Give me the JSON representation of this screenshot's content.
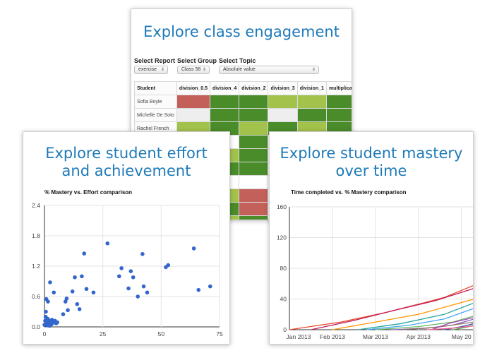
{
  "engagement": {
    "title": "Explore class engagement",
    "controls": {
      "report_label": "Select Report",
      "report_value": "exercise",
      "group_label": "Select Group",
      "group_value": "Class 58",
      "topic_label": "Select Topic",
      "topic_value": "Absolute value"
    },
    "columns": [
      "Student",
      "division_0.5",
      "division_4",
      "division_2",
      "division_3",
      "division_1",
      "multiplicat"
    ],
    "rows": [
      {
        "student": "Sofia Boyle",
        "cells": [
          "red",
          "dark",
          "dark",
          "light",
          "light",
          "dark"
        ]
      },
      {
        "student": "Michelle De Soto",
        "cells": [
          "empty",
          "dark",
          "dark",
          "empty",
          "dark",
          "dark"
        ]
      },
      {
        "student": "Rachel French",
        "cells": [
          "light",
          "dark",
          "light",
          "dark",
          "light",
          "dark"
        ]
      },
      {
        "student": "",
        "cells": [
          "none",
          "none",
          "dark",
          "none",
          "none",
          "none"
        ]
      },
      {
        "student": "",
        "cells": [
          "none",
          "light",
          "dark",
          "none",
          "none",
          "none"
        ]
      },
      {
        "student": "",
        "cells": [
          "none",
          "dark",
          "dark",
          "none",
          "none",
          "none"
        ]
      },
      {
        "student": "",
        "cells": [
          "none",
          "none",
          "none",
          "none",
          "none",
          "none"
        ]
      },
      {
        "student": "",
        "cells": [
          "none",
          "light",
          "red",
          "none",
          "none",
          "none"
        ]
      },
      {
        "student": "",
        "cells": [
          "none",
          "dark",
          "red",
          "none",
          "none",
          "none"
        ]
      },
      {
        "student": "",
        "cells": [
          "none",
          "light",
          "dark",
          "none",
          "none",
          "none"
        ]
      }
    ],
    "colors": {
      "dark": "#4a8c2a",
      "light": "#a3c24c",
      "red": "#c4605a",
      "empty": "#eeeeee"
    }
  },
  "effort": {
    "title_line1": "Explore student effort",
    "title_line2": "and achievement"
  },
  "mastery": {
    "title_line1": "Explore student mastery",
    "title_line2": "over time"
  },
  "chart_data": [
    {
      "type": "scatter",
      "title": "% Mastery vs. Effort comparison",
      "xlabel": "",
      "ylabel": "",
      "xlim": [
        0,
        75
      ],
      "ylim": [
        0,
        2.4
      ],
      "xticks": [
        "0",
        "25",
        "50",
        "75"
      ],
      "yticks": [
        "0.0",
        "0.6",
        "1.2",
        "1.8",
        "2.4"
      ],
      "grid": true,
      "color": "#3366cc",
      "points": [
        [
          0,
          0.04
        ],
        [
          0.3,
          0.12
        ],
        [
          0.5,
          0.2
        ],
        [
          0.6,
          0.3
        ],
        [
          0.8,
          0.55
        ],
        [
          1,
          0.08
        ],
        [
          1.2,
          0.03
        ],
        [
          1.4,
          0.16
        ],
        [
          1.5,
          0.5
        ],
        [
          1.8,
          0.06
        ],
        [
          2,
          0.12
        ],
        [
          2.2,
          0.02
        ],
        [
          2.4,
          0.88
        ],
        [
          2.6,
          0.1
        ],
        [
          3,
          0.05
        ],
        [
          3.2,
          0.14
        ],
        [
          3.6,
          0.08
        ],
        [
          4,
          0.1
        ],
        [
          4.5,
          0.12
        ],
        [
          5,
          0.07
        ],
        [
          5.5,
          0.09
        ],
        [
          4,
          0.68
        ],
        [
          8,
          0.25
        ],
        [
          9,
          0.5
        ],
        [
          9.5,
          0.56
        ],
        [
          10,
          0.33
        ],
        [
          12,
          0.7
        ],
        [
          13,
          0.98
        ],
        [
          14,
          0.45
        ],
        [
          15,
          0.35
        ],
        [
          16,
          1.0
        ],
        [
          17,
          1.45
        ],
        [
          18,
          0.75
        ],
        [
          21,
          0.68
        ],
        [
          27,
          1.65
        ],
        [
          32,
          1.0
        ],
        [
          33,
          1.16
        ],
        [
          36,
          0.76
        ],
        [
          37,
          1.1
        ],
        [
          38,
          0.98
        ],
        [
          40,
          0.6
        ],
        [
          42,
          1.44
        ],
        [
          42.5,
          0.8
        ],
        [
          44,
          0.68
        ],
        [
          52,
          1.18
        ],
        [
          53,
          1.22
        ],
        [
          64,
          1.55
        ],
        [
          66,
          0.73
        ],
        [
          71,
          0.8
        ]
      ]
    },
    {
      "type": "line",
      "title": "Time completed vs. % Mastery comparison",
      "xlabel": "",
      "ylabel": "",
      "x_unit": "months since Jan 2013",
      "xlim": [
        0,
        4.3
      ],
      "ylim": [
        0,
        160
      ],
      "xticks": [
        "Jan 2013",
        "Feb 2013",
        "Mar 2013",
        "Apr 2013",
        "May 20"
      ],
      "yticks": [
        "0",
        "40",
        "80",
        "120",
        "160"
      ],
      "grid": true,
      "series": [
        {
          "color": "#e9492a",
          "points": [
            [
              0,
              0
            ],
            [
              1.2,
              10
            ],
            [
              2.2,
              22
            ],
            [
              3.2,
              36
            ],
            [
              3.6,
              42
            ],
            [
              4.3,
              58
            ]
          ]
        },
        {
          "color": "#c2185b",
          "points": [
            [
              0.5,
              0
            ],
            [
              1.5,
              12
            ],
            [
              2.5,
              26
            ],
            [
              3.4,
              38
            ],
            [
              4.3,
              54
            ]
          ]
        },
        {
          "color": "#ff9800",
          "points": [
            [
              1.0,
              0
            ],
            [
              2.0,
              10
            ],
            [
              3.0,
              20
            ],
            [
              4.3,
              40
            ]
          ]
        },
        {
          "color": "#26a69a",
          "points": [
            [
              1.6,
              0
            ],
            [
              2.6,
              8
            ],
            [
              3.6,
              20
            ],
            [
              4.3,
              35
            ]
          ]
        },
        {
          "color": "#42a5f5",
          "points": [
            [
              1.8,
              0
            ],
            [
              2.8,
              6
            ],
            [
              3.6,
              14
            ],
            [
              4.3,
              28
            ]
          ]
        },
        {
          "color": "#66bb6a",
          "points": [
            [
              2.0,
              0
            ],
            [
              3.0,
              4
            ],
            [
              3.8,
              10
            ],
            [
              4.3,
              18
            ]
          ]
        },
        {
          "color": "#7e57c2",
          "points": [
            [
              2.4,
              0
            ],
            [
              3.2,
              2
            ],
            [
              3.8,
              6
            ],
            [
              4.3,
              14
            ]
          ]
        },
        {
          "color": "#8d6e63",
          "points": [
            [
              2.6,
              0
            ],
            [
              3.4,
              3
            ],
            [
              4.3,
              10
            ]
          ]
        },
        {
          "color": "#ab47bc",
          "points": [
            [
              3.3,
              0
            ],
            [
              3.7,
              8
            ],
            [
              4.0,
              12
            ],
            [
              4.3,
              16
            ]
          ]
        },
        {
          "color": "#3949ab",
          "points": [
            [
              3.6,
              0
            ],
            [
              4.0,
              4
            ],
            [
              4.3,
              8
            ]
          ]
        },
        {
          "color": "#4caf50",
          "points": [
            [
              3.8,
              0
            ],
            [
              4.1,
              3
            ],
            [
              4.3,
              6
            ]
          ]
        },
        {
          "color": "#f06292",
          "points": [
            [
              3.2,
              0
            ],
            [
              3.8,
              2
            ],
            [
              4.3,
              5
            ]
          ]
        }
      ]
    }
  ]
}
